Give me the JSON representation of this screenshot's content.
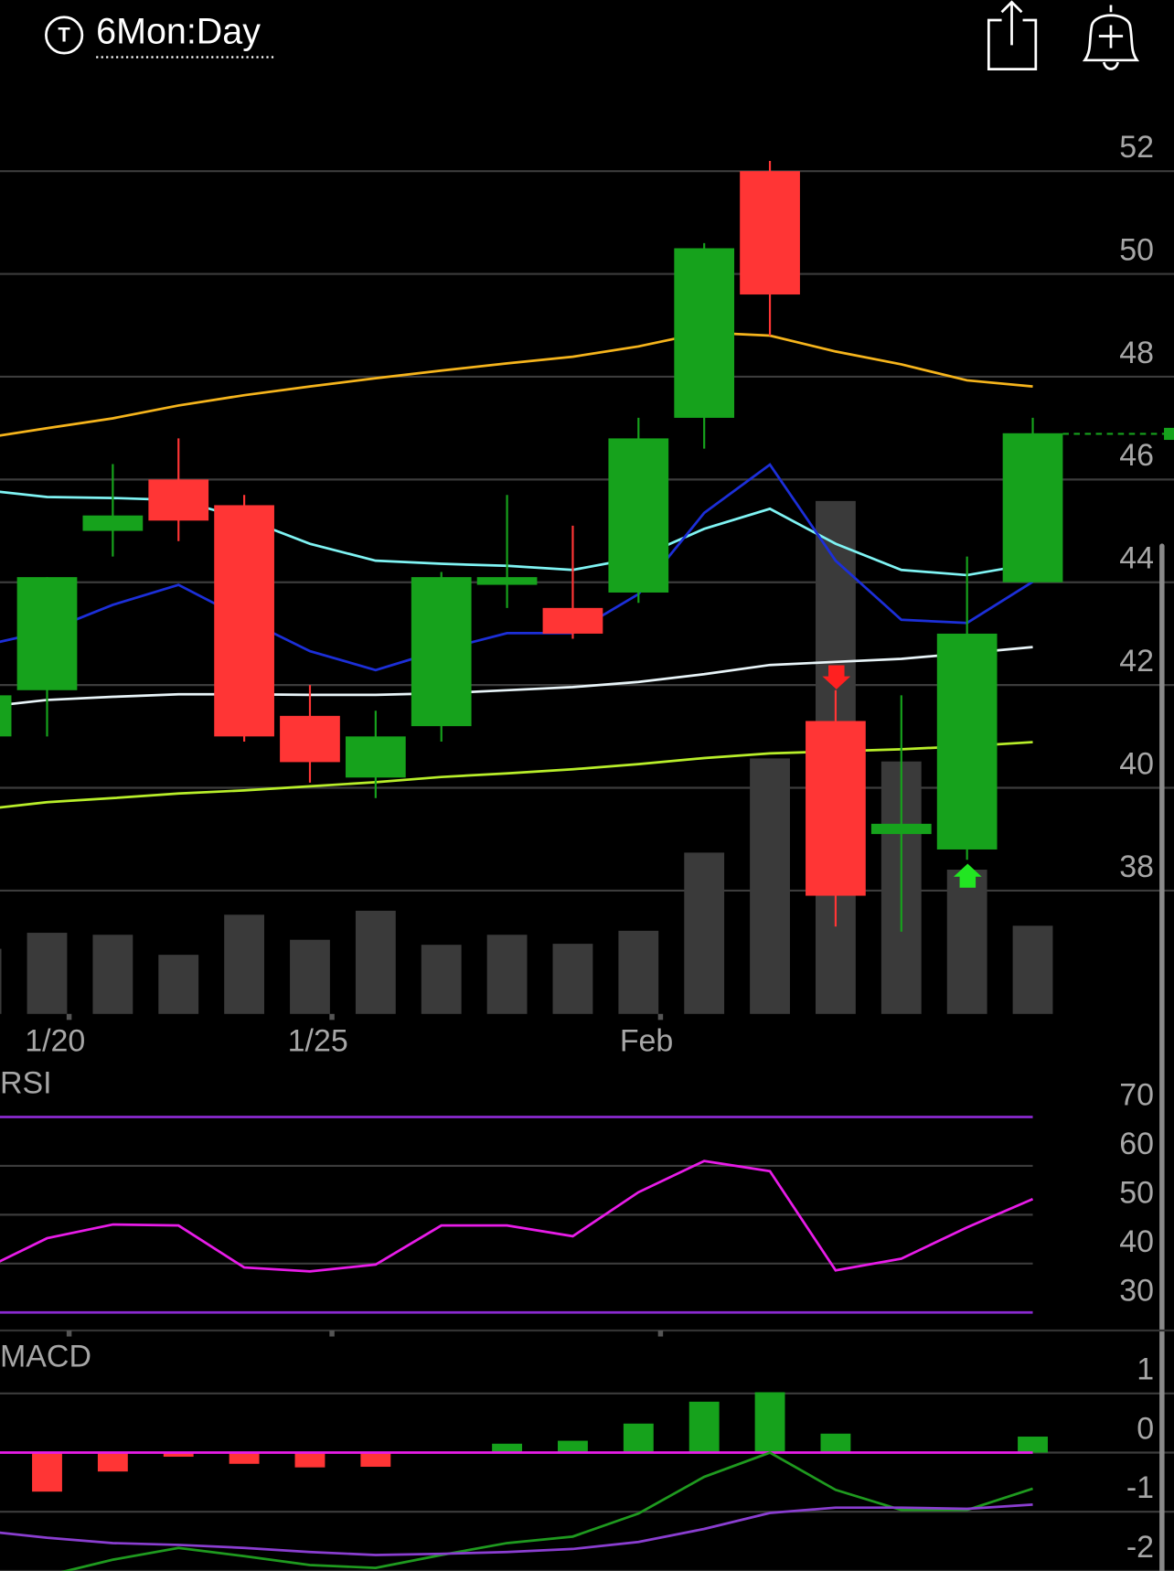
{
  "header": {
    "badge": "T",
    "title": "6Mon:Day"
  },
  "chart_data": [
    {
      "type": "candlestick",
      "categories": [
        null,
        "1/20",
        null,
        null,
        null,
        "1/25",
        null,
        null,
        null,
        null,
        "Feb",
        null,
        null,
        null,
        null,
        null,
        null
      ],
      "open": [
        41.0,
        41.9,
        45.0,
        46.0,
        45.5,
        41.4,
        40.2,
        41.2,
        43.95,
        43.5,
        43.8,
        47.2,
        52.0,
        41.3,
        39.1,
        38.8,
        44.0
      ],
      "high": [
        41.9,
        44.1,
        46.3,
        46.8,
        45.7,
        42.0,
        41.5,
        44.2,
        45.7,
        45.1,
        47.2,
        50.6,
        52.2,
        41.9,
        41.8,
        44.5,
        47.2
      ],
      "low": [
        40.9,
        41.0,
        44.5,
        44.8,
        40.9,
        40.1,
        39.8,
        40.9,
        43.5,
        42.9,
        43.6,
        46.6,
        48.8,
        37.3,
        37.2,
        38.6,
        44.0
      ],
      "close": [
        41.8,
        44.1,
        45.3,
        45.2,
        41.0,
        40.5,
        41.0,
        44.1,
        44.1,
        43.0,
        46.8,
        50.5,
        49.6,
        37.9,
        39.3,
        43.0,
        46.9
      ],
      "up_color": "#16a21c",
      "down_color": "#ff3535",
      "volume": [
        65,
        81,
        79,
        59,
        99,
        74,
        103,
        69,
        79,
        70,
        83,
        161,
        255,
        512,
        252,
        144,
        88
      ],
      "volume_color": "#3a3a3a",
      "overlays": [
        {
          "color": "#f5b41c",
          "values": [
            46.8,
            47.0,
            47.19,
            47.44,
            47.64,
            47.81,
            47.97,
            48.12,
            48.26,
            48.39,
            48.59,
            48.86,
            48.8,
            48.49,
            48.24,
            47.93,
            47.81
          ]
        },
        {
          "color": "#7ff3f3",
          "values": [
            45.8,
            45.66,
            45.64,
            45.6,
            45.24,
            44.75,
            44.42,
            44.36,
            44.32,
            44.24,
            44.48,
            45.04,
            45.43,
            44.75,
            44.24,
            44.14,
            44.36
          ]
        },
        {
          "color": "#1c2fd8",
          "values": [
            42.76,
            43.05,
            43.56,
            43.95,
            43.29,
            42.66,
            42.29,
            42.68,
            43.01,
            43.01,
            43.77,
            45.35,
            46.29,
            44.42,
            43.27,
            43.21,
            44.01
          ]
        },
        {
          "color": "#e8f4f8",
          "values": [
            41.57,
            41.71,
            41.77,
            41.82,
            41.82,
            41.81,
            41.81,
            41.84,
            41.9,
            41.96,
            42.06,
            42.21,
            42.39,
            42.45,
            42.51,
            42.62,
            42.74
          ]
        },
        {
          "color": "#b8ee2a",
          "values": [
            39.58,
            39.72,
            39.8,
            39.89,
            39.95,
            40.03,
            40.11,
            40.21,
            40.28,
            40.36,
            40.46,
            40.58,
            40.67,
            40.71,
            40.75,
            40.81,
            40.89
          ]
        }
      ],
      "ylim": [
        35.6,
        53.38
      ],
      "yticks": [
        38,
        40,
        42,
        44,
        46,
        48,
        50,
        52
      ],
      "grid": true
    },
    {
      "type": "line",
      "label": "RSI",
      "series": [
        {
          "color": "#e81ce8",
          "values": [
            38.6,
            45.2,
            48.0,
            47.8,
            39.2,
            38.4,
            39.8,
            47.8,
            47.8,
            45.6,
            54.6,
            61.0,
            58.9,
            38.6,
            41.0,
            47.4,
            53.2
          ]
        }
      ],
      "levels": [
        70,
        30
      ],
      "level_color": "#8a2ad0",
      "ylim": [
        25.9,
        79.2
      ],
      "yticks": [
        30,
        40,
        50,
        60,
        70
      ],
      "grid": true
    },
    {
      "type": "macd",
      "label": "MACD",
      "histogram": [
        null,
        -0.66,
        -0.32,
        -0.07,
        -0.19,
        -0.25,
        -0.24,
        0,
        0.15,
        0.2,
        0.49,
        0.86,
        1.02,
        0.32,
        0,
        0,
        0.27
      ],
      "up_color": "#16a21c",
      "down_color": "#ff3535",
      "series": [
        {
          "color": "#1f9a1f",
          "values": [
            null,
            -2.08,
            -1.81,
            -1.61,
            -1.75,
            -1.9,
            -1.95,
            -1.73,
            -1.53,
            -1.42,
            -1.03,
            -0.41,
            0,
            -0.63,
            -0.97,
            -0.97,
            -0.61
          ]
        },
        {
          "color": "#8a3ed0",
          "values": [
            -1.32,
            -1.44,
            -1.53,
            -1.56,
            -1.61,
            -1.68,
            -1.73,
            -1.71,
            -1.68,
            -1.63,
            -1.51,
            -1.29,
            -1.02,
            -0.93,
            -0.93,
            -0.95,
            -0.88
          ]
        }
      ],
      "zero_color": "#e81ce8",
      "ylim": [
        -2.0,
        1.86
      ],
      "yticks": [
        1,
        0,
        -1,
        -2
      ],
      "grid": true
    }
  ]
}
